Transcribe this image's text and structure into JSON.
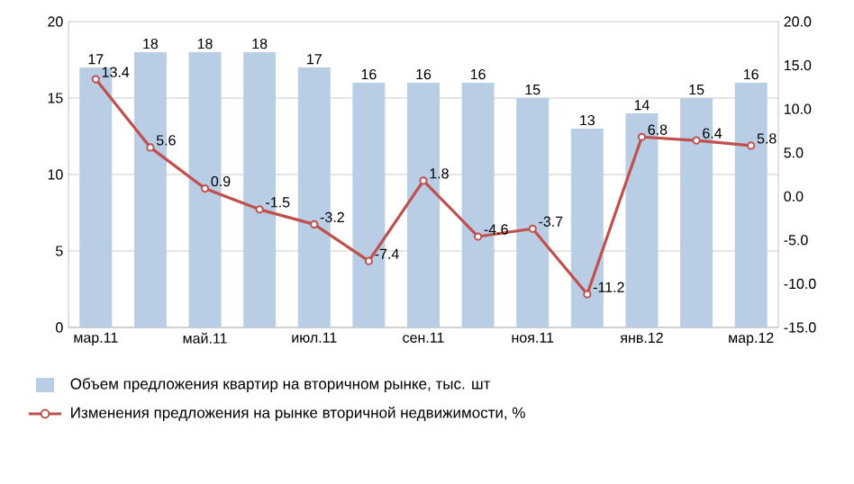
{
  "chart_data": {
    "type": "bar",
    "categories": [
      "мар.11",
      null,
      "май.11",
      null,
      "июл.11",
      null,
      "сен.11",
      null,
      "ноя.11",
      null,
      "янв.12",
      null,
      "мар.12"
    ],
    "series": [
      {
        "name": "Объем предложения квартир на вторичном рынке, тыс. шт",
        "color": "#b9cde5",
        "values": [
          17,
          18,
          18,
          18,
          17,
          16,
          16,
          16,
          15,
          13,
          14,
          15,
          16
        ]
      },
      {
        "name": "Изменения предложения на рынке вторичной недвижимости, %",
        "type": "line",
        "axis": "y2",
        "color": "#c0504d",
        "marker": "circle",
        "values": [
          13.4,
          5.6,
          0.9,
          -1.5,
          -3.2,
          -7.4,
          1.8,
          -4.6,
          -3.7,
          -11.2,
          6.8,
          6.4,
          5.8
        ]
      }
    ],
    "ylim": [
      0,
      20
    ],
    "yticks": [
      0,
      5,
      10,
      15,
      20
    ],
    "y2lim": [
      -15,
      20
    ],
    "y2ticks": [
      {
        "value": -15,
        "label": "-15.0"
      },
      {
        "value": -10,
        "label": "-10.0"
      },
      {
        "value": -5,
        "label": "-5.0"
      },
      {
        "value": 0,
        "label": "0.0"
      },
      {
        "value": 5,
        "label": "5.0"
      },
      {
        "value": 10,
        "label": "10.0"
      },
      {
        "value": 15,
        "label": "15.0"
      },
      {
        "value": 20,
        "label": "20.0"
      }
    ],
    "grid": "y",
    "legend": "bottom",
    "data_labels": true
  }
}
